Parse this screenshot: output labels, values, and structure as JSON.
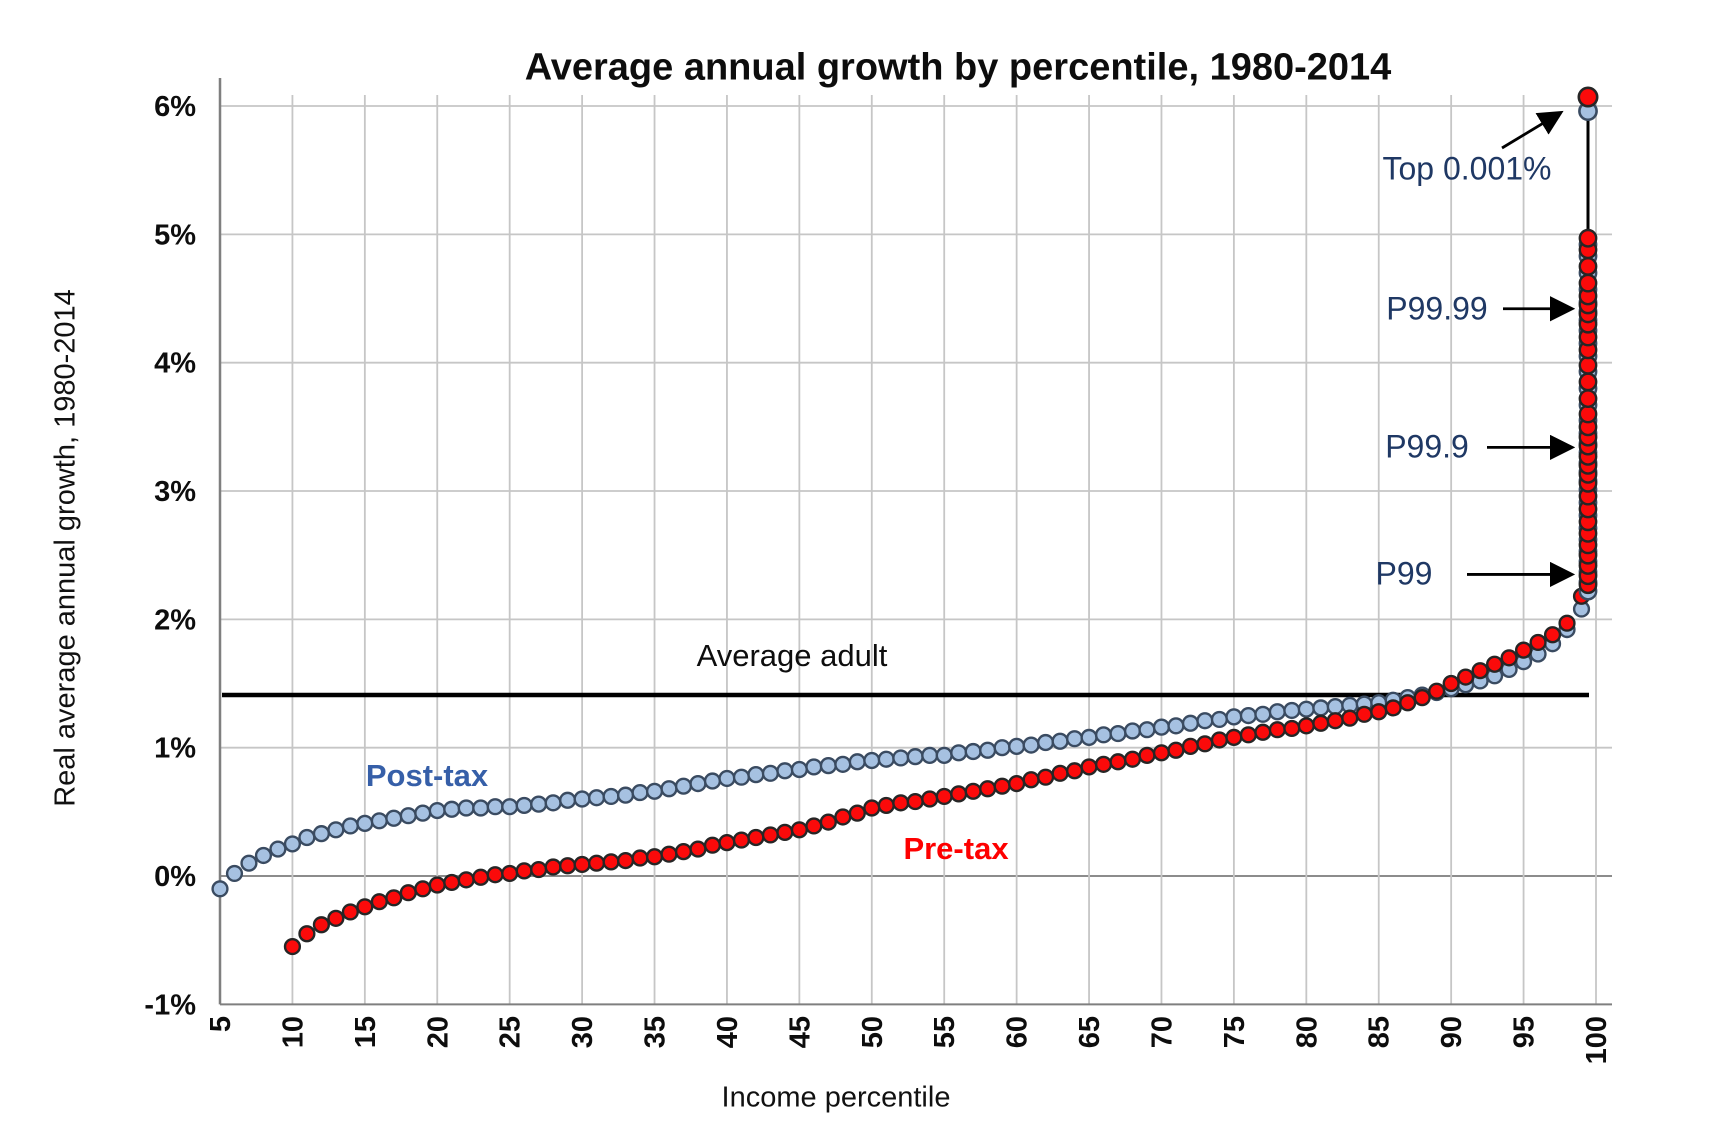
{
  "title": "Average annual growth by percentile, 1980-2014",
  "colors": {
    "post_tax_fill": "#A6C1E1",
    "post_tax_outline": "#3A4B61",
    "post_tax_label": "#365FA8",
    "pre_tax_fill": "#FB0A0A",
    "pre_tax_outline": "#262626",
    "pre_tax_label": "#FE0000",
    "annotation_text": "#1F3864",
    "gridline": "#C6C6C6",
    "zero_line": "#8C8C8C",
    "axis_line": "#7F7F7F",
    "reference_line": "#000000"
  },
  "chart_data": {
    "type": "scatter",
    "title": "Average annual growth by percentile, 1980-2014",
    "xlabel": "Income percentile",
    "ylabel": "Real average annual growth, 1980-2014",
    "x_ticks": [
      5,
      10,
      15,
      20,
      25,
      30,
      35,
      40,
      45,
      50,
      55,
      60,
      65,
      70,
      75,
      80,
      85,
      90,
      95,
      100
    ],
    "y_ticks": [
      {
        "v": 6,
        "label": "6%"
      },
      {
        "v": 5,
        "label": "5%"
      },
      {
        "v": 4,
        "label": "4%"
      },
      {
        "v": 3,
        "label": "3%"
      },
      {
        "v": 2,
        "label": "2%"
      },
      {
        "v": 1,
        "label": "1%"
      },
      {
        "v": 0,
        "label": "0%"
      },
      {
        "v": -1,
        "label": "-1%"
      }
    ],
    "xlim": [
      5,
      101
    ],
    "ylim": [
      -1,
      6.15
    ],
    "grid": true,
    "reference_line": {
      "label": "Average adult",
      "value": 1.41
    },
    "series": [
      {
        "name": "Post-tax",
        "x_start": 5,
        "values": [
          -0.1,
          0.02,
          0.1,
          0.16,
          0.21,
          0.25,
          0.3,
          0.33,
          0.36,
          0.39,
          0.41,
          0.43,
          0.45,
          0.47,
          0.49,
          0.51,
          0.52,
          0.53,
          0.53,
          0.54,
          0.54,
          0.55,
          0.56,
          0.57,
          0.59,
          0.6,
          0.61,
          0.62,
          0.63,
          0.65,
          0.66,
          0.68,
          0.7,
          0.72,
          0.74,
          0.76,
          0.77,
          0.79,
          0.8,
          0.82,
          0.83,
          0.85,
          0.86,
          0.87,
          0.89,
          0.9,
          0.91,
          0.92,
          0.93,
          0.94,
          0.94,
          0.96,
          0.97,
          0.98,
          1.0,
          1.01,
          1.02,
          1.04,
          1.05,
          1.07,
          1.08,
          1.1,
          1.11,
          1.13,
          1.14,
          1.16,
          1.17,
          1.19,
          1.21,
          1.22,
          1.24,
          1.25,
          1.26,
          1.28,
          1.29,
          1.3,
          1.31,
          1.32,
          1.33,
          1.34,
          1.35,
          1.37,
          1.39,
          1.41,
          1.43,
          1.46,
          1.49,
          1.52,
          1.56,
          1.61,
          1.67,
          1.73,
          1.81,
          1.92,
          2.08
        ]
      },
      {
        "name": "Pre-tax",
        "x_start": 10,
        "values": [
          -0.55,
          -0.45,
          -0.38,
          -0.33,
          -0.28,
          -0.24,
          -0.2,
          -0.17,
          -0.13,
          -0.1,
          -0.07,
          -0.05,
          -0.03,
          -0.01,
          0.01,
          0.02,
          0.04,
          0.05,
          0.07,
          0.08,
          0.09,
          0.1,
          0.11,
          0.12,
          0.14,
          0.15,
          0.17,
          0.19,
          0.21,
          0.24,
          0.26,
          0.28,
          0.3,
          0.32,
          0.34,
          0.36,
          0.39,
          0.42,
          0.46,
          0.49,
          0.53,
          0.55,
          0.57,
          0.58,
          0.6,
          0.62,
          0.64,
          0.66,
          0.68,
          0.7,
          0.72,
          0.75,
          0.77,
          0.8,
          0.82,
          0.85,
          0.87,
          0.89,
          0.91,
          0.94,
          0.96,
          0.98,
          1.01,
          1.03,
          1.06,
          1.08,
          1.1,
          1.12,
          1.14,
          1.15,
          1.17,
          1.19,
          1.21,
          1.23,
          1.26,
          1.28,
          1.31,
          1.35,
          1.39,
          1.44,
          1.5,
          1.55,
          1.6,
          1.65,
          1.7,
          1.76,
          1.82,
          1.88,
          1.97,
          2.18
        ]
      }
    ],
    "top_detail_column": {
      "x": 100,
      "pre_tax_values": [
        2.27,
        2.34,
        2.42,
        2.5,
        2.58,
        2.67,
        2.76,
        2.86,
        2.96,
        3.06,
        3.13,
        3.2,
        3.27,
        3.35,
        3.42,
        3.5,
        3.6,
        3.72,
        3.85,
        3.98,
        4.1,
        4.2,
        4.3,
        4.38,
        4.45,
        4.52,
        4.62,
        4.75,
        4.88,
        4.97
      ],
      "post_tax_offset": -0.05,
      "top_points": {
        "post_tax": 5.96,
        "pre_tax": 6.07
      },
      "connector_line": [
        5.0,
        5.92
      ]
    },
    "annotations": [
      {
        "label": "Top 0.001%",
        "target_value": 6.0
      },
      {
        "label": "P99.99",
        "target_value": 4.42
      },
      {
        "label": "P99.9",
        "target_value": 3.34
      },
      {
        "label": "P99",
        "target_value": 2.35
      }
    ]
  }
}
